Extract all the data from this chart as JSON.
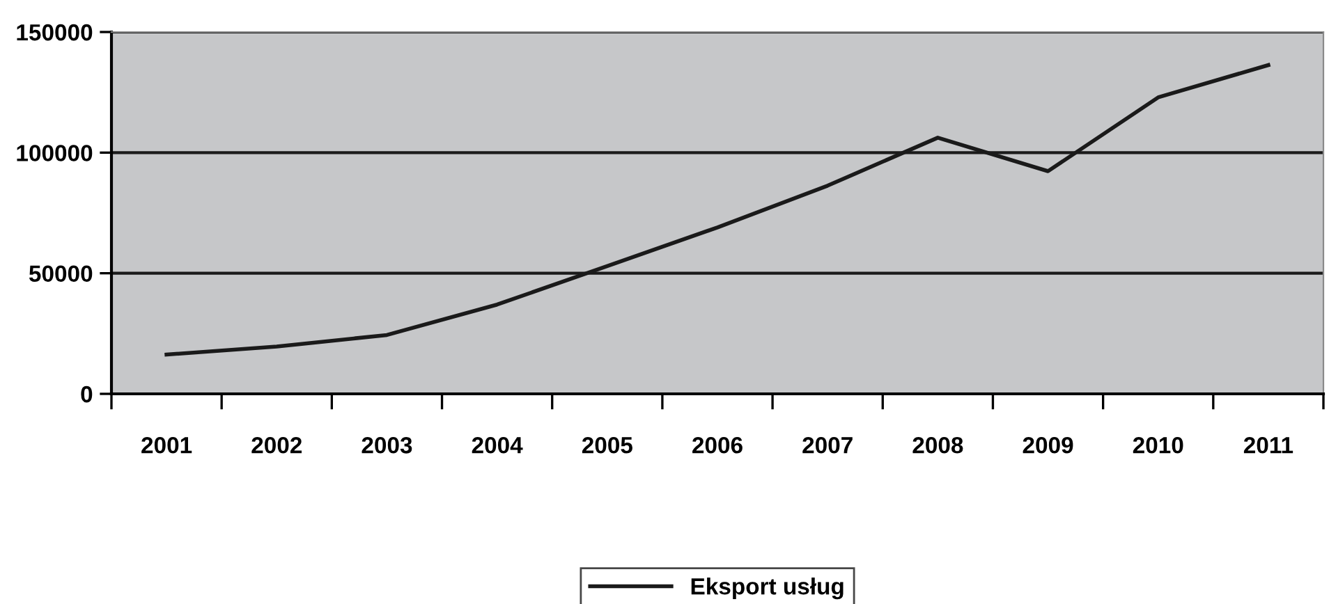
{
  "chart_data": {
    "type": "line",
    "categories": [
      "2001",
      "2002",
      "2003",
      "2004",
      "2005",
      "2006",
      "2007",
      "2008",
      "2009",
      "2010",
      "2011"
    ],
    "series": [
      {
        "name": "Eksport usług",
        "color": "#1a1a1a",
        "values": [
          16300,
          19600,
          24400,
          37000,
          53000,
          69000,
          86300,
          106200,
          92300,
          122900,
          136300
        ]
      }
    ],
    "ylim": [
      0,
      150000
    ],
    "yticks": [
      0,
      50000,
      100000,
      150000
    ],
    "grid": "y",
    "legend": "bottom",
    "marker": "none",
    "line_style": "solid"
  }
}
